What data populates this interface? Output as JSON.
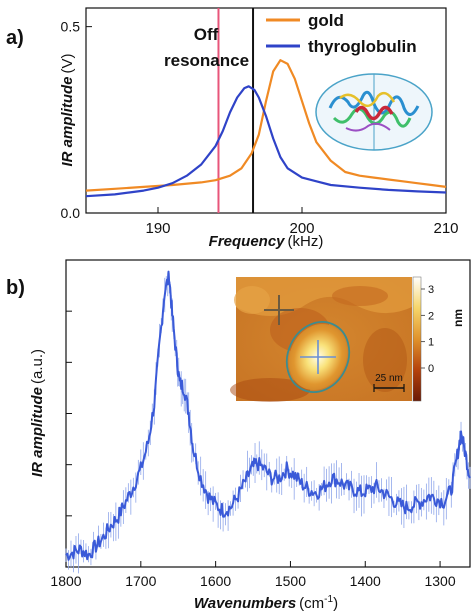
{
  "chart_data": [
    {
      "panel": "a)",
      "type": "line",
      "xlabel": "Frequency",
      "xunit": "(kHz)",
      "ylabel": "IR amplitude",
      "yunit": "(V)",
      "xlim": [
        185,
        210
      ],
      "ylim": [
        0,
        0.55
      ],
      "xticks": [
        190,
        200,
        210
      ],
      "yticks": [
        0.0,
        0.5
      ],
      "ytick_labels": [
        "0.0",
        "0.5"
      ],
      "series": [
        {
          "name": "gold",
          "color": "#f08a24",
          "points": [
            [
              185,
              0.06
            ],
            [
              187,
              0.065
            ],
            [
              189,
              0.07
            ],
            [
              191,
              0.075
            ],
            [
              193,
              0.082
            ],
            [
              194,
              0.088
            ],
            [
              195,
              0.1
            ],
            [
              195.8,
              0.12
            ],
            [
              196.5,
              0.16
            ],
            [
              197,
              0.21
            ],
            [
              197.5,
              0.3
            ],
            [
              198,
              0.38
            ],
            [
              198.5,
              0.41
            ],
            [
              199,
              0.4
            ],
            [
              199.5,
              0.36
            ],
            [
              200,
              0.3
            ],
            [
              200.5,
              0.24
            ],
            [
              201,
              0.19
            ],
            [
              202,
              0.14
            ],
            [
              203,
              0.11
            ],
            [
              204,
              0.1
            ],
            [
              205,
              0.095
            ],
            [
              206,
              0.09
            ],
            [
              207,
              0.085
            ],
            [
              208,
              0.08
            ],
            [
              209,
              0.075
            ],
            [
              210,
              0.07
            ]
          ]
        },
        {
          "name": "thyroglobulin",
          "color": "#2f43c8",
          "points": [
            [
              185,
              0.045
            ],
            [
              187,
              0.05
            ],
            [
              188,
              0.055
            ],
            [
              189,
              0.06
            ],
            [
              190,
              0.068
            ],
            [
              191,
              0.08
            ],
            [
              192,
              0.1
            ],
            [
              193,
              0.13
            ],
            [
              194,
              0.18
            ],
            [
              194.5,
              0.22
            ],
            [
              195,
              0.27
            ],
            [
              195.5,
              0.31
            ],
            [
              196,
              0.335
            ],
            [
              196.3,
              0.34
            ],
            [
              196.7,
              0.33
            ],
            [
              197,
              0.31
            ],
            [
              197.5,
              0.26
            ],
            [
              198,
              0.2
            ],
            [
              198.5,
              0.15
            ],
            [
              199,
              0.12
            ],
            [
              200,
              0.095
            ],
            [
              201,
              0.085
            ],
            [
              202,
              0.075
            ],
            [
              204,
              0.068
            ],
            [
              206,
              0.062
            ],
            [
              208,
              0.058
            ],
            [
              210,
              0.055
            ]
          ]
        }
      ],
      "vlines": [
        {
          "x": 194.2,
          "color": "#e8557a"
        },
        {
          "x": 196.6,
          "color": "#111111"
        }
      ],
      "annotation": {
        "line1": "Off",
        "line2": "resonance",
        "color": "#e8557a"
      }
    },
    {
      "panel": "b)",
      "type": "line",
      "xlabel": "Wavenumbers",
      "xunit": "(cm",
      "xunit_sup": "-1",
      "xunit_close": ")",
      "ylabel": "IR amplitude",
      "yunit": "(a.u.)",
      "xlim": [
        1800,
        1260
      ],
      "xticks": [
        1800,
        1700,
        1600,
        1500,
        1400,
        1300
      ],
      "ylim": [
        0,
        1
      ],
      "series": [
        {
          "name": "",
          "color": "#3a5ad8",
          "points": [
            [
              1800,
              0.04
            ],
            [
              1790,
              0.05
            ],
            [
              1780,
              0.06
            ],
            [
              1770,
              0.04
            ],
            [
              1760,
              0.07
            ],
            [
              1750,
              0.1
            ],
            [
              1740,
              0.14
            ],
            [
              1730,
              0.17
            ],
            [
              1720,
              0.22
            ],
            [
              1710,
              0.27
            ],
            [
              1700,
              0.33
            ],
            [
              1690,
              0.42
            ],
            [
              1682,
              0.55
            ],
            [
              1675,
              0.75
            ],
            [
              1668,
              0.93
            ],
            [
              1662,
              0.98
            ],
            [
              1658,
              0.85
            ],
            [
              1652,
              0.7
            ],
            [
              1648,
              0.62
            ],
            [
              1642,
              0.6
            ],
            [
              1636,
              0.52
            ],
            [
              1630,
              0.4
            ],
            [
              1620,
              0.3
            ],
            [
              1610,
              0.24
            ],
            [
              1600,
              0.21
            ],
            [
              1590,
              0.19
            ],
            [
              1580,
              0.2
            ],
            [
              1570,
              0.24
            ],
            [
              1560,
              0.29
            ],
            [
              1552,
              0.33
            ],
            [
              1545,
              0.35
            ],
            [
              1535,
              0.33
            ],
            [
              1525,
              0.3
            ],
            [
              1515,
              0.3
            ],
            [
              1505,
              0.33
            ],
            [
              1495,
              0.31
            ],
            [
              1485,
              0.28
            ],
            [
              1475,
              0.26
            ],
            [
              1465,
              0.25
            ],
            [
              1455,
              0.27
            ],
            [
              1445,
              0.3
            ],
            [
              1435,
              0.29
            ],
            [
              1425,
              0.27
            ],
            [
              1415,
              0.26
            ],
            [
              1405,
              0.25
            ],
            [
              1395,
              0.26
            ],
            [
              1385,
              0.27
            ],
            [
              1375,
              0.25
            ],
            [
              1365,
              0.23
            ],
            [
              1355,
              0.21
            ],
            [
              1345,
              0.2
            ],
            [
              1335,
              0.21
            ],
            [
              1325,
              0.22
            ],
            [
              1315,
              0.24
            ],
            [
              1305,
              0.23
            ],
            [
              1295,
              0.22
            ],
            [
              1285,
              0.26
            ],
            [
              1278,
              0.36
            ],
            [
              1272,
              0.45
            ],
            [
              1266,
              0.38
            ],
            [
              1260,
              0.3
            ]
          ]
        }
      ],
      "inset": {
        "colorbar_ticks": [
          "3",
          "2",
          "1",
          "0"
        ],
        "colorbar_unit": "nm",
        "scalebar_label": "25 nm"
      }
    }
  ]
}
